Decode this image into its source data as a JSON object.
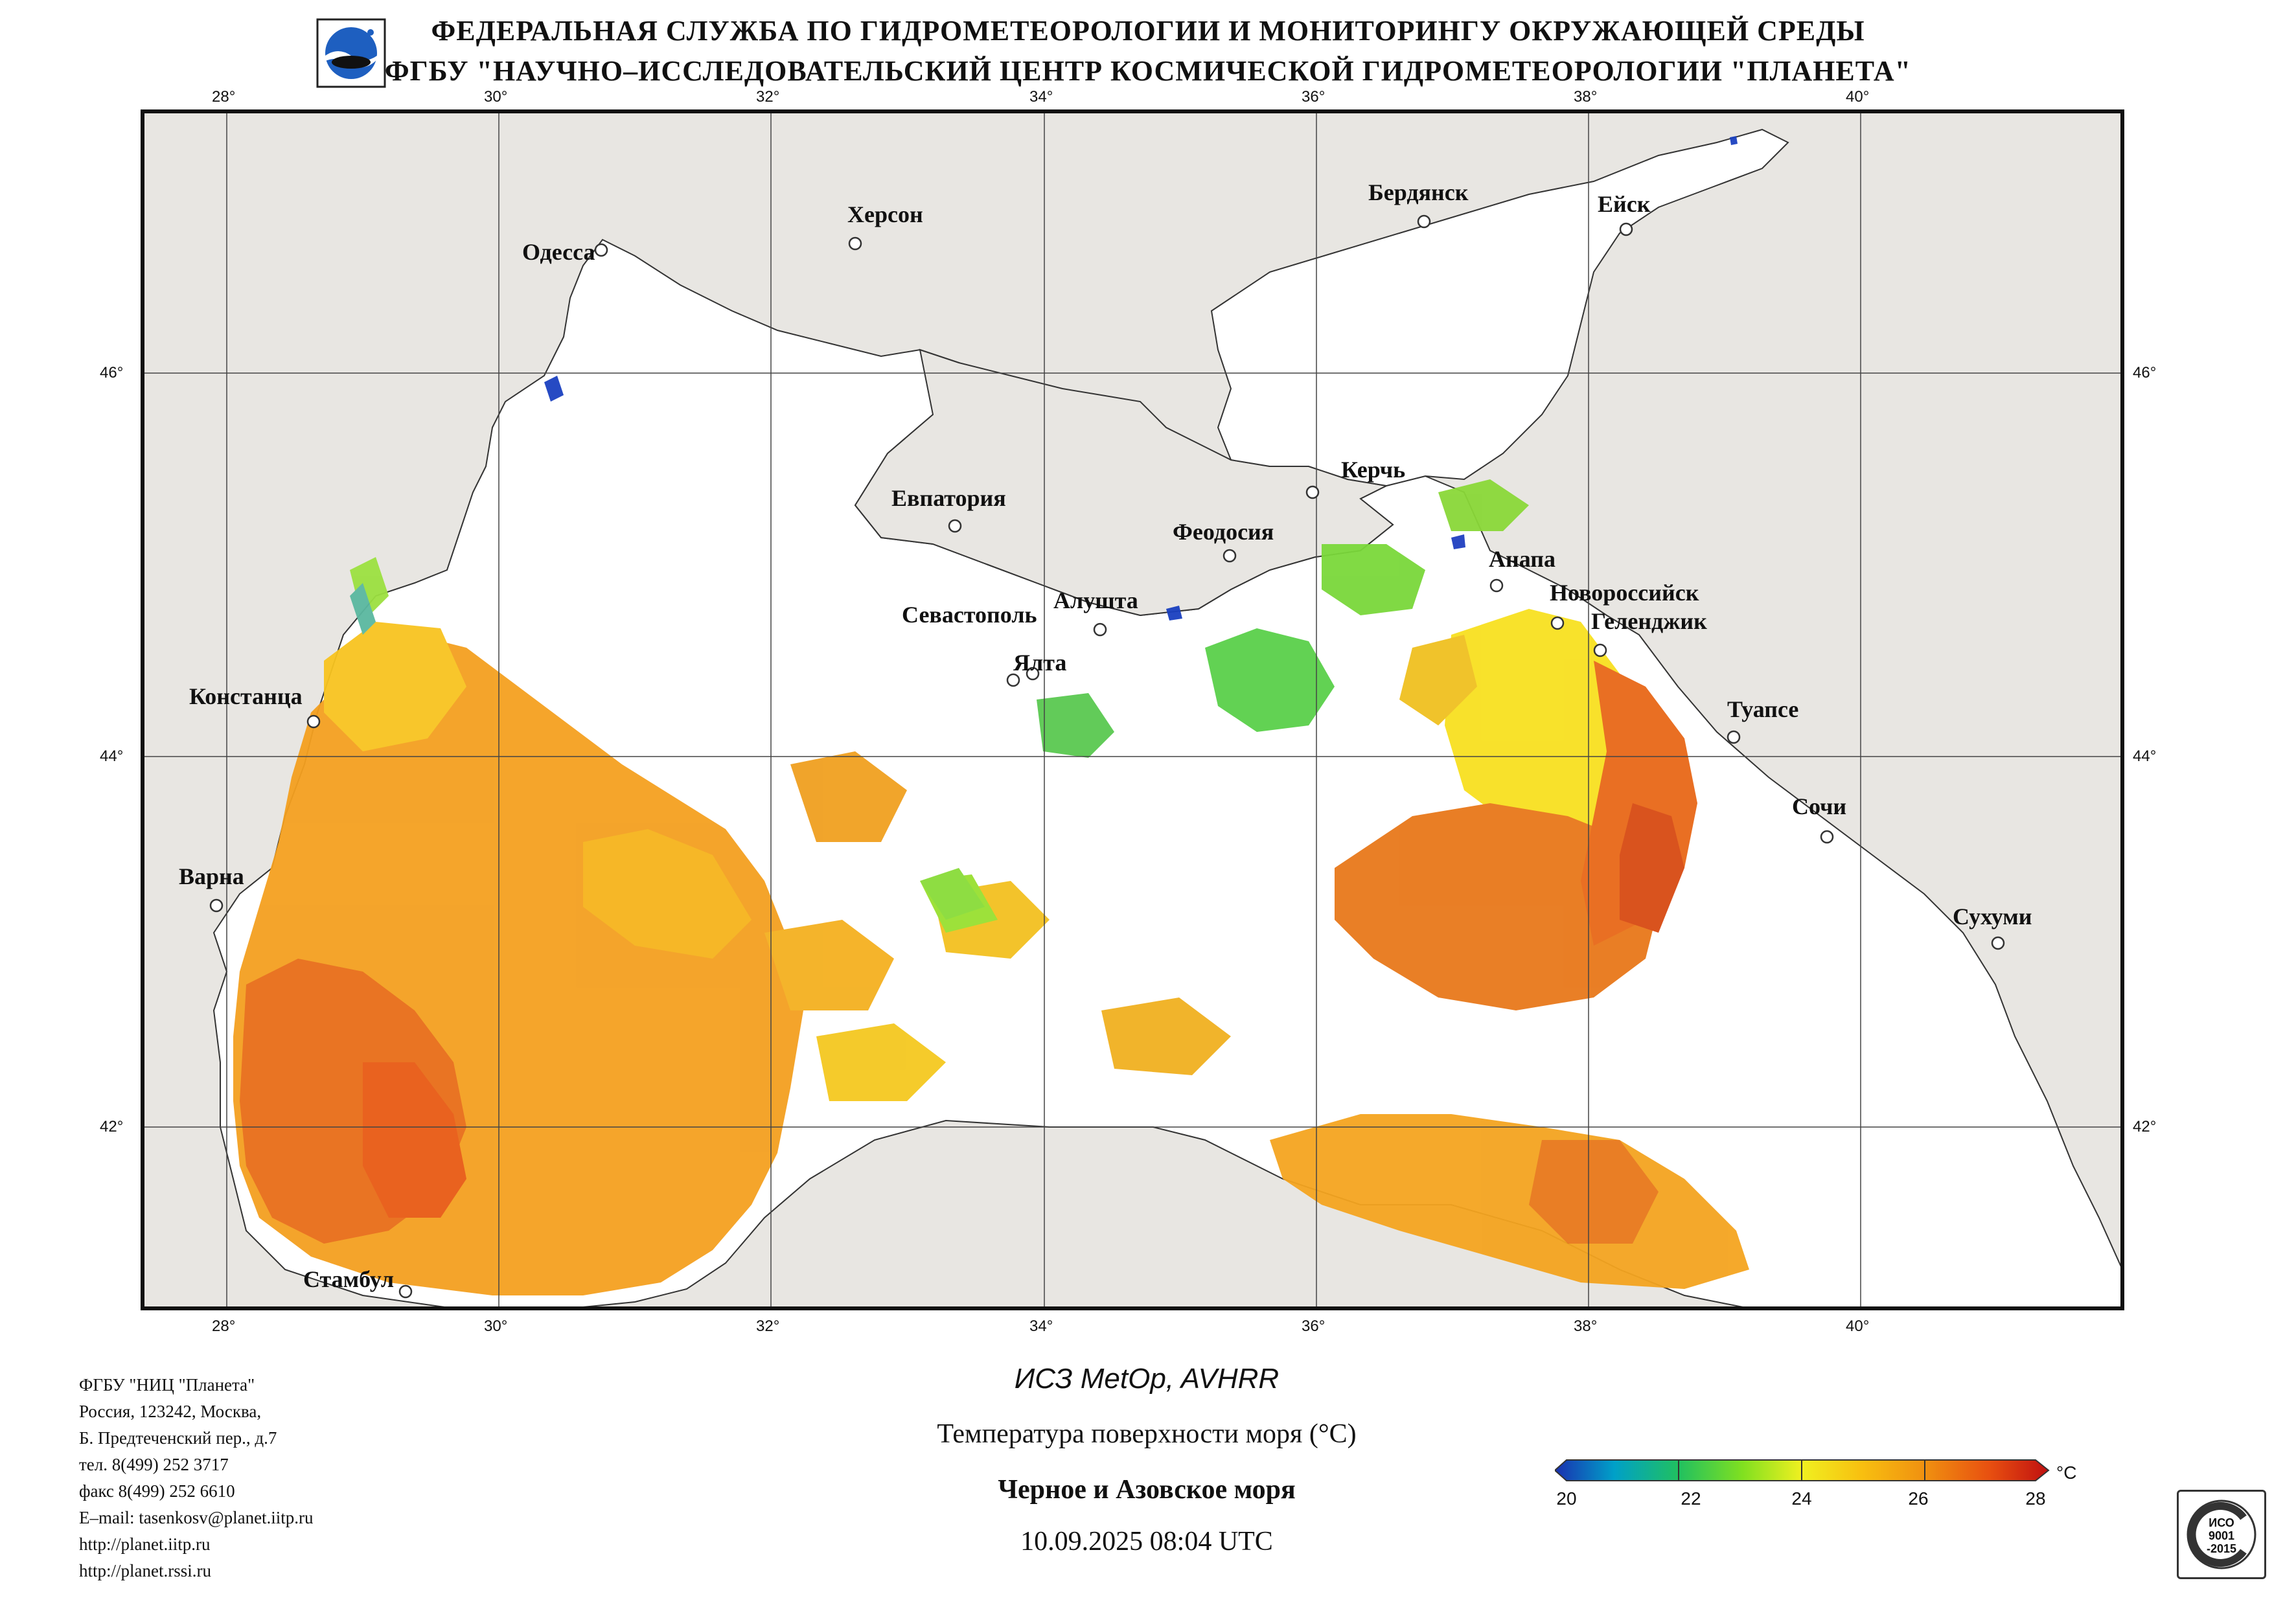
{
  "header": {
    "line1": "ФЕДЕРАЛЬНАЯ СЛУЖБА ПО ГИДРОМЕТЕОРОЛОГИИ И МОНИТОРИНГУ ОКРУЖАЮЩЕЙ СРЕДЫ",
    "line2": "ФГБУ \"НАУЧНО–ИССЛЕДОВАТЕЛЬСКИЙ ЦЕНТР КОСМИЧЕСКОЙ ГИДРОМЕТЕОРОЛОГИИ \"ПЛАНЕТА\""
  },
  "map": {
    "lon_labels": [
      "28°",
      "30°",
      "32°",
      "34°",
      "36°",
      "38°",
      "40°"
    ],
    "lat_labels": [
      "46°",
      "44°",
      "42°"
    ],
    "cities": [
      {
        "name": "Одесса",
        "icon": "city-marker"
      },
      {
        "name": "Херсон",
        "icon": "city-marker"
      },
      {
        "name": "Бердянск",
        "icon": "city-marker"
      },
      {
        "name": "Ейск",
        "icon": "city-marker"
      },
      {
        "name": "Евпатория",
        "icon": "city-marker"
      },
      {
        "name": "Керчь",
        "icon": "city-marker"
      },
      {
        "name": "Феодосия",
        "icon": "city-marker"
      },
      {
        "name": "Анапа",
        "icon": "city-marker"
      },
      {
        "name": "Новороссийск",
        "icon": "city-marker"
      },
      {
        "name": "Геленджик",
        "icon": "city-marker"
      },
      {
        "name": "Севастополь",
        "icon": "city-marker"
      },
      {
        "name": "Алушта",
        "icon": "city-marker"
      },
      {
        "name": "Ялта",
        "icon": "city-marker"
      },
      {
        "name": "Констанца",
        "icon": "city-marker"
      },
      {
        "name": "Туапсе",
        "icon": "city-marker"
      },
      {
        "name": "Сочи",
        "icon": "city-marker"
      },
      {
        "name": "Варна",
        "icon": "city-marker"
      },
      {
        "name": "Сухуми",
        "icon": "city-marker"
      },
      {
        "name": "Стамбул",
        "icon": "city-marker"
      }
    ],
    "land_color": "#e8e6e2",
    "sea_color": "#ffffff"
  },
  "footer": {
    "address_lines": [
      "ФГБУ \"НИЦ \"Планета\"",
      "Россия, 123242, Москва,",
      "Б. Предтеченский пер., д.7",
      "тел. 8(499) 252 3717",
      "факс 8(499) 252 6610",
      "E–mail: tasenkosv@planet.iitp.ru",
      "http://planet.iitp.ru",
      "http://planet.rssi.ru"
    ],
    "satellite": "ИСЗ MetOp, AVHRR",
    "product": "Температура поверхности моря (°C)",
    "region": "Черное и Азовское моря",
    "datetime": "10.09.2025 08:04 UTC"
  },
  "colorbar": {
    "unit": "°C",
    "ticks": [
      "20",
      "22",
      "24",
      "26",
      "28"
    ],
    "min": 20,
    "max": 28,
    "colors": [
      "#1a2fb0",
      "#00a0c8",
      "#20c060",
      "#80e020",
      "#f0f020",
      "#f8c010",
      "#f09010",
      "#e85010",
      "#c01010"
    ]
  },
  "certificate": {
    "line1": "ИСО",
    "line2": "9001",
    "line3": "-2015"
  }
}
